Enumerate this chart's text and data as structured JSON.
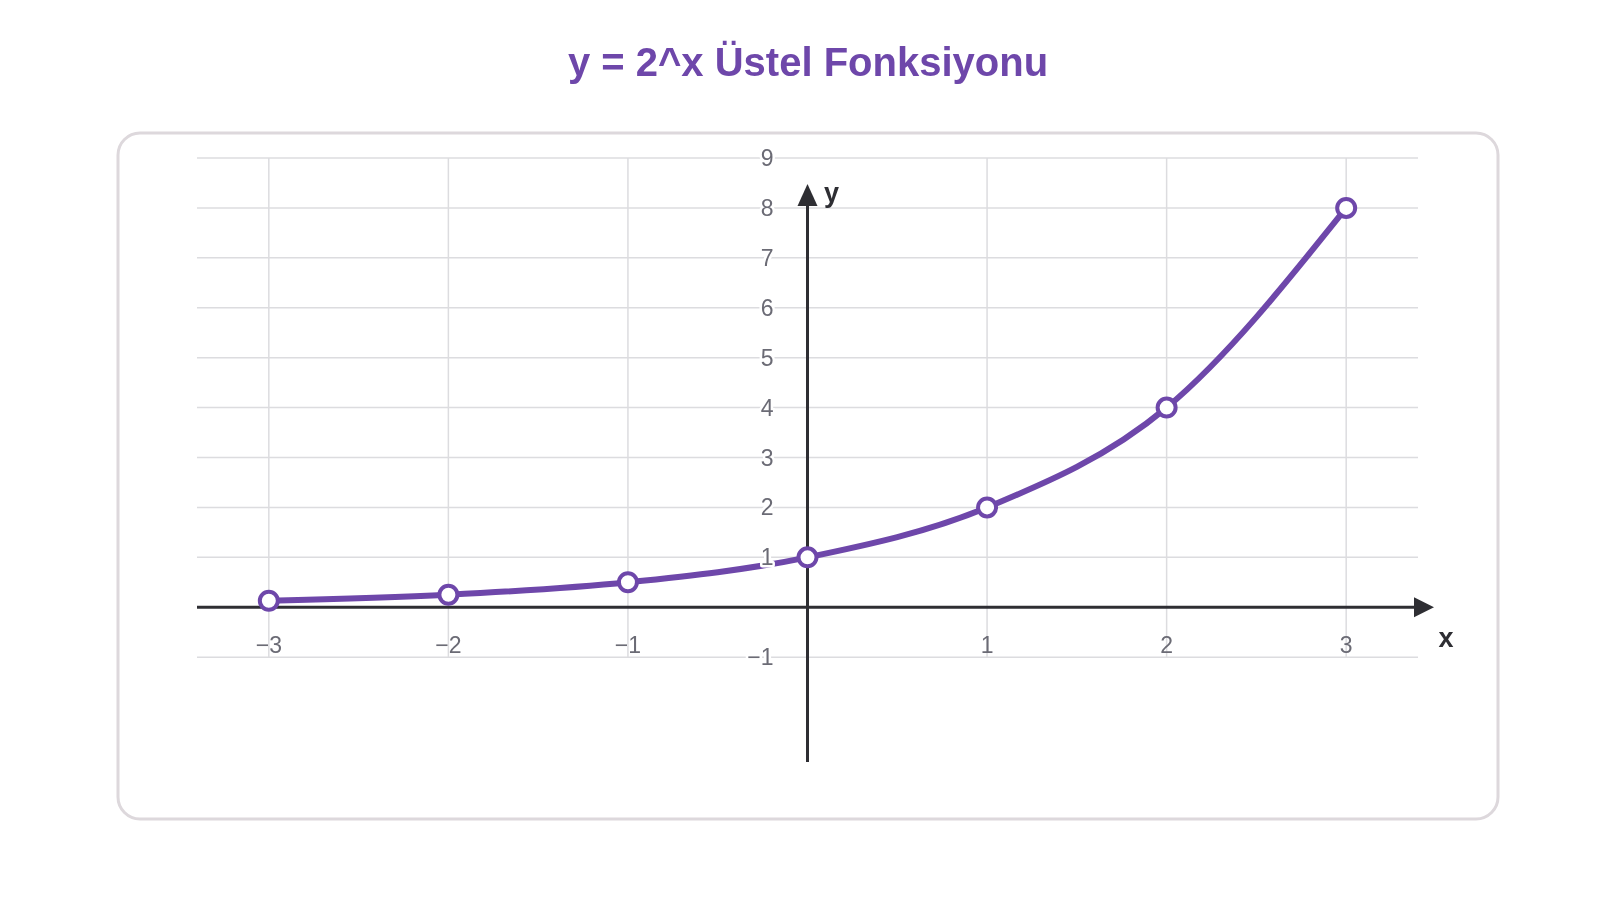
{
  "chart_data": {
    "type": "line",
    "title": "y = 2^x Üstel Fonksiyonu",
    "xlabel": "x",
    "ylabel": "y",
    "x": [
      -3,
      -2,
      -1,
      0,
      1,
      2,
      3
    ],
    "series": [
      {
        "color": "#6e47aa",
        "values": [
          0.13,
          0.25,
          0.5,
          1,
          2,
          4,
          8
        ]
      }
    ],
    "xlim": [
      -3.4,
      3.4
    ],
    "ylim": [
      -3.1,
      9
    ],
    "xticks": [
      {
        "value": -3,
        "label": "−3"
      },
      {
        "value": -2,
        "label": "−2"
      },
      {
        "value": -1,
        "label": "−1"
      },
      1,
      2,
      3
    ],
    "yticks": [
      {
        "value": -1,
        "label": "−1"
      },
      1,
      2,
      3,
      4,
      5,
      6,
      7,
      8,
      9
    ],
    "grid": true,
    "marker": "circle",
    "line_style": "solid"
  }
}
